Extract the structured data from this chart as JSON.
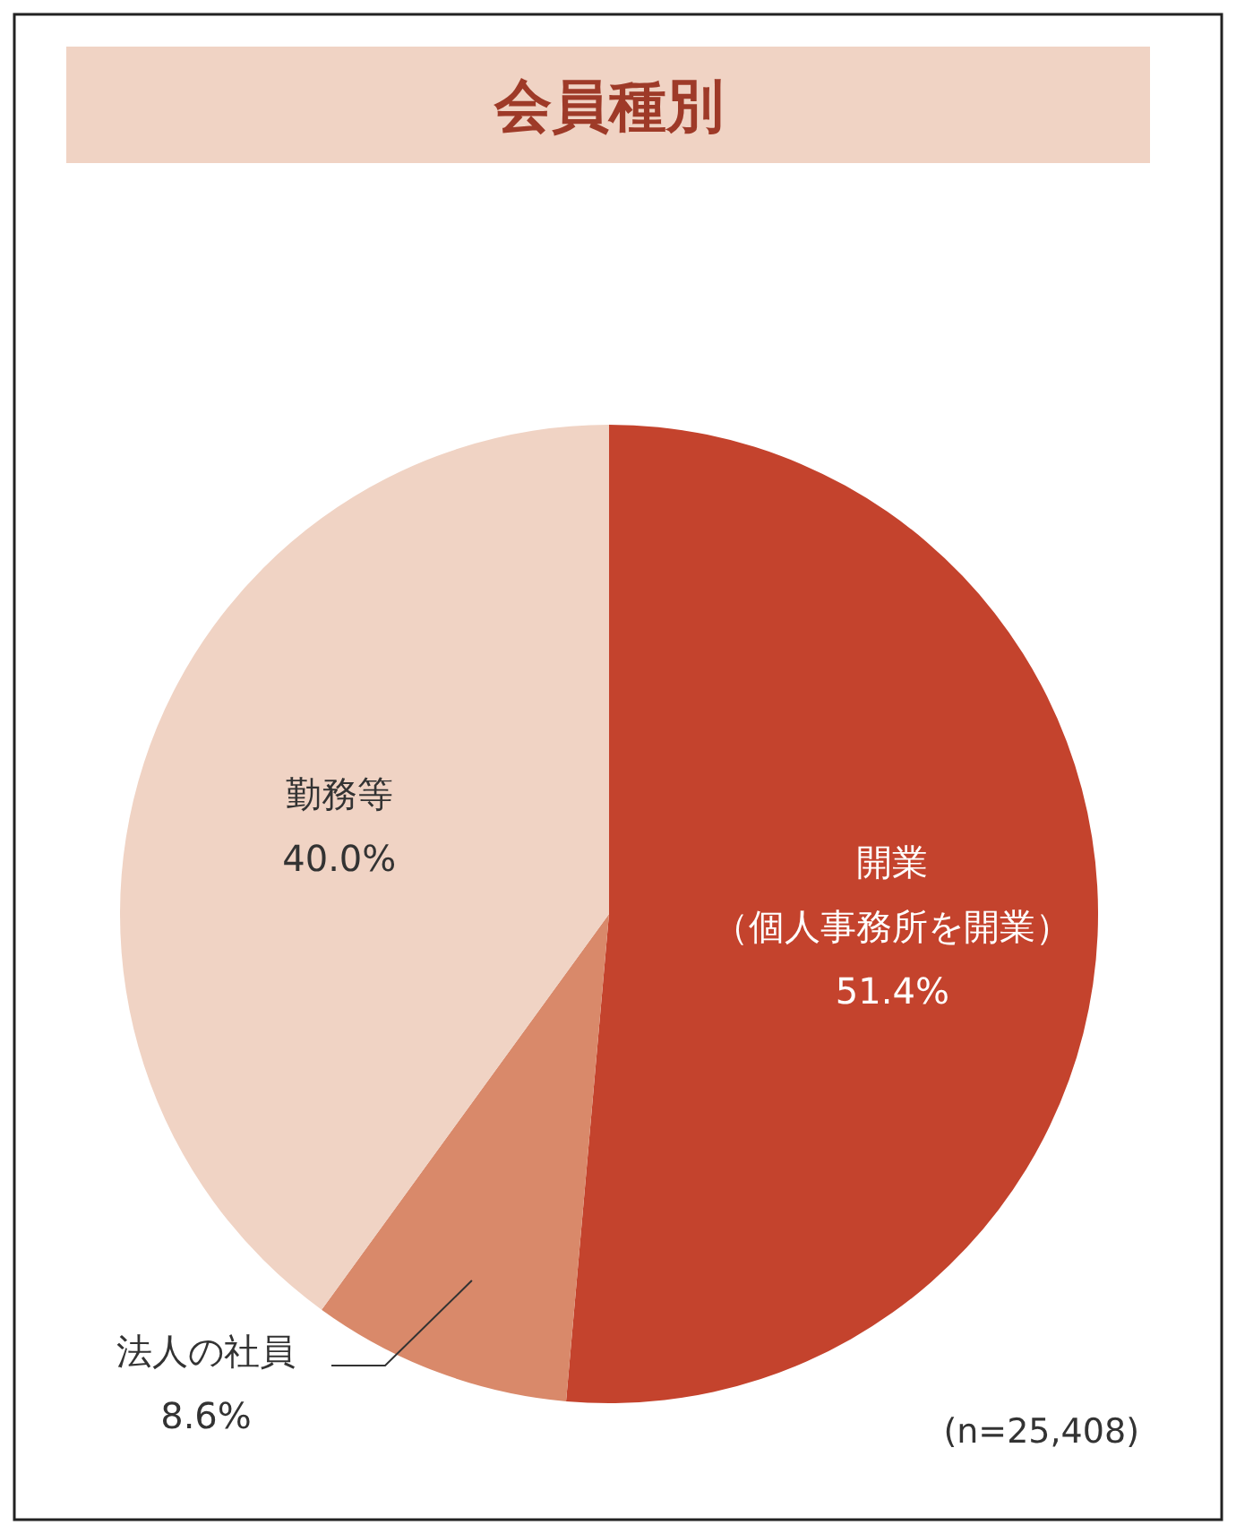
{
  "chart_data": {
    "type": "pie",
    "title": "会員種別",
    "categories": [
      "開業（個人事務所を開業）",
      "法人の社員",
      "勤務等"
    ],
    "values": [
      51.4,
      8.6,
      40.0
    ],
    "value_labels": [
      "51.4%",
      "8.6%",
      "40.0%"
    ],
    "colors": [
      "#c4432d",
      "#d9896a",
      "#f0d3c4"
    ],
    "annotations": [
      "(n=25,408)"
    ]
  }
}
